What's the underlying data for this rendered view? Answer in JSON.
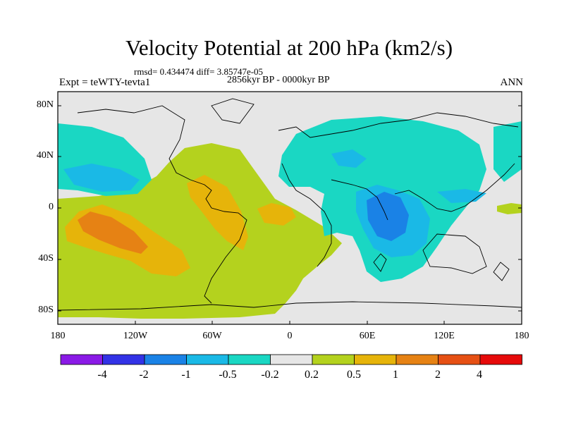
{
  "title": "Velocity Potential at 200 hPa (km2/s)",
  "stats": "rmsd= 0.434474 diff= 3.85747e-05",
  "left_label": "Expt = teWTY-tevta1",
  "center_label": "2856kyr BP - 0000kyr BP",
  "right_label": "ANN",
  "lat_ticks": [
    "80N",
    "40N",
    "0",
    "40S",
    "80S"
  ],
  "lon_ticks": [
    "180",
    "120W",
    "60W",
    "0",
    "60E",
    "120E",
    "180"
  ],
  "colorbar": {
    "labels": [
      "-4",
      "-2",
      "-1",
      "-0.5",
      "-0.2",
      "0.2",
      "0.5",
      "1",
      "2",
      "4"
    ],
    "colors": [
      "#8a1ae6",
      "#3232e6",
      "#1a82e6",
      "#1ab9e6",
      "#1ad7c3",
      "#e6e6e6",
      "#b4d21e",
      "#e6b40a",
      "#e68214",
      "#e65014",
      "#e60a0a"
    ]
  },
  "map": {
    "ocean_color": "#e6e6e6",
    "coast_color": "#000000"
  }
}
